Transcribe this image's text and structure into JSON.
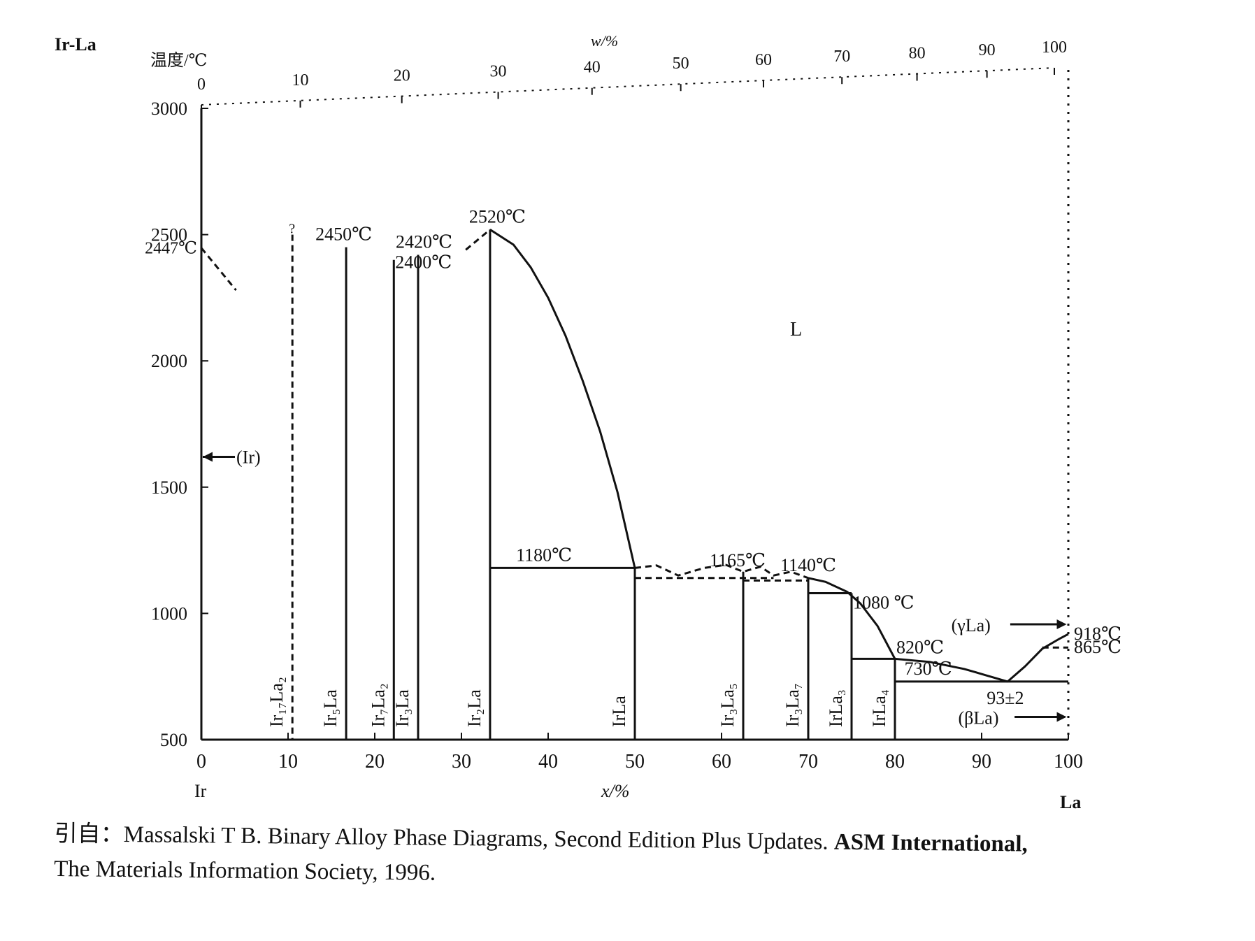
{
  "chart_data": {
    "type": "line",
    "system_label": "Ir-La",
    "ylabel": "温度/℃",
    "xlabel": "x/%",
    "top_xlabel": "w/%",
    "xlim": [
      0,
      100
    ],
    "ylim": [
      500,
      3000
    ],
    "x_ticks": [
      "0",
      "10",
      "20",
      "30",
      "40",
      "50",
      "60",
      "70",
      "80",
      "90",
      "100"
    ],
    "y_ticks": [
      "500",
      "1000",
      "1500",
      "2000",
      "2500",
      "3000"
    ],
    "top_ticks": [
      "0",
      "10",
      "20",
      "30",
      "40",
      "50",
      "60",
      "70",
      "80",
      "90",
      "100"
    ],
    "left_element": "Ir",
    "right_element": "La",
    "phase_L": "L",
    "ir_melt": {
      "x": 0,
      "t": 2447,
      "label": "2447℃"
    },
    "ir_phase": "(Ir)",
    "compounds": [
      {
        "name": "Ir₁₇La₂",
        "x": 10.5,
        "t": 2500,
        "dashed": true,
        "mark": "?"
      },
      {
        "name": "Ir₅La",
        "x": 16.7,
        "t": 2450,
        "label": "2450℃"
      },
      {
        "name": "Ir₇La₂",
        "x": 22.2,
        "t": 2400,
        "label": "2400℃"
      },
      {
        "name": "Ir₃La",
        "x": 25.0,
        "t": 2420,
        "label": "2420℃"
      },
      {
        "name": "Ir₂La",
        "x": 33.3,
        "t": 2520,
        "label": "2520℃"
      },
      {
        "name": "IrLa",
        "x": 50.0,
        "t": 1180
      },
      {
        "name": "Ir₃La₅",
        "x": 62.5,
        "t": 1165,
        "label": "1165℃"
      },
      {
        "name": "Ir₃La₇",
        "x": 70.0,
        "t": 1140,
        "label": "1140℃"
      },
      {
        "name": "IrLa₃",
        "x": 75.0,
        "t": 1080,
        "label": "1080 ℃"
      },
      {
        "name": "IrLa₄",
        "x": 80.0,
        "t": 820,
        "label": "820℃"
      }
    ],
    "liquidus": [
      [
        33.3,
        2520
      ],
      [
        36,
        2460
      ],
      [
        38,
        2370
      ],
      [
        40,
        2250
      ],
      [
        42,
        2100
      ],
      [
        44,
        1920
      ],
      [
        46,
        1720
      ],
      [
        48,
        1480
      ],
      [
        50,
        1180
      ]
    ],
    "liquidus_la_side": [
      [
        70,
        1140
      ],
      [
        72,
        1125
      ],
      [
        74.5,
        1085
      ],
      [
        76,
        1040
      ],
      [
        78,
        950
      ],
      [
        80,
        820
      ]
    ],
    "liquidus_eutectic_left": [
      [
        80,
        820
      ],
      [
        84,
        808
      ],
      [
        88,
        780
      ],
      [
        90.5,
        755
      ],
      [
        93,
        730
      ]
    ],
    "liquidus_eutectic_right": [
      [
        93,
        730
      ],
      [
        95,
        790
      ],
      [
        97,
        860
      ],
      [
        99,
        900
      ],
      [
        100,
        918
      ]
    ],
    "dashed_liquidus": [
      [
        50,
        1180
      ],
      [
        52.5,
        1190
      ],
      [
        55,
        1150
      ],
      [
        58,
        1180
      ],
      [
        60.5,
        1192
      ],
      [
        62.5,
        1165
      ],
      [
        64.5,
        1185
      ],
      [
        66,
        1150
      ],
      [
        68,
        1165
      ],
      [
        70,
        1140
      ]
    ],
    "isotherms": [
      {
        "x1": 33.3,
        "x2": 50,
        "t": 1180,
        "label": "1180℃"
      },
      {
        "x1": 50,
        "x2": 66,
        "t": 1140,
        "dashed": true
      },
      {
        "x1": 62.5,
        "x2": 70,
        "t": 1130,
        "dashed": true
      },
      {
        "x1": 70,
        "x2": 75,
        "t": 1080
      },
      {
        "x1": 75,
        "x2": 80,
        "t": 820
      },
      {
        "x1": 80,
        "x2": 100,
        "t": 730,
        "label": "730℃"
      },
      {
        "x1": 97,
        "x2": 100,
        "t": 865,
        "dashed": true
      }
    ],
    "eutectic": {
      "x": 93,
      "t": 730,
      "label": "93±2"
    },
    "la_phases": [
      {
        "name": "(γLa)",
        "t": 918,
        "label": "918℃"
      },
      {
        "name": "(βLa)",
        "t": 865,
        "label": "865℃"
      }
    ],
    "ir_initial_liquidus": [
      [
        0,
        2447
      ],
      [
        4,
        2280
      ]
    ],
    "ir2la_dashed_top": [
      [
        30.5,
        2440
      ],
      [
        33.3,
        2520
      ]
    ]
  },
  "citation": {
    "prefix": "引自：",
    "text": "Massalski T B.  Binary Alloy Phase Diagrams, Second Edition Plus Updates.  ",
    "publisher": "ASM International,",
    "line2": "The Materials Information Society, 1996."
  }
}
